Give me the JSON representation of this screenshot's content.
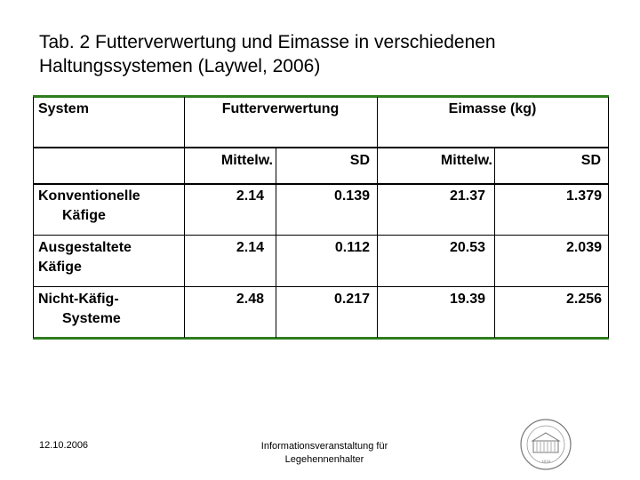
{
  "title": {
    "line1": "Tab. 2 Futterverwertung und Eimasse in verschiedenen",
    "line2": "Haltungssystemen (Laywel, 2006)"
  },
  "table": {
    "headers": {
      "system": "System",
      "feed": "Futterverwertung",
      "egg": "Eimasse (kg)"
    },
    "subheaders": {
      "feed_mean": "Mittelw.",
      "feed_sd": "SD",
      "egg_mean": "Mittelw.",
      "egg_sd": "SD"
    },
    "rows": [
      {
        "line1": "Konventionelle",
        "line2": "Käfige",
        "feed_mean": "2.14",
        "feed_sd": "0.139",
        "egg_mean": "21.37",
        "egg_sd": "1.379"
      },
      {
        "line1": "Ausgestaltete",
        "line2": "Käfige",
        "feed_mean": "2.14",
        "feed_sd": "0.112",
        "egg_mean": "20.53",
        "egg_sd": "2.039"
      },
      {
        "line1": "Nicht-Käfig-",
        "line2": "Systeme",
        "feed_mean": "2.48",
        "feed_sd": "0.217",
        "egg_mean": "19.39",
        "egg_sd": "2.256"
      }
    ],
    "border_color": "#2e7d1f"
  },
  "footer": {
    "date": "12.10.2006",
    "event_line1": "Informationsveranstaltung für",
    "event_line2": "Legehennenhalter",
    "logo_text": "UNIVERSITÄT HOHENHEIM 1818"
  }
}
